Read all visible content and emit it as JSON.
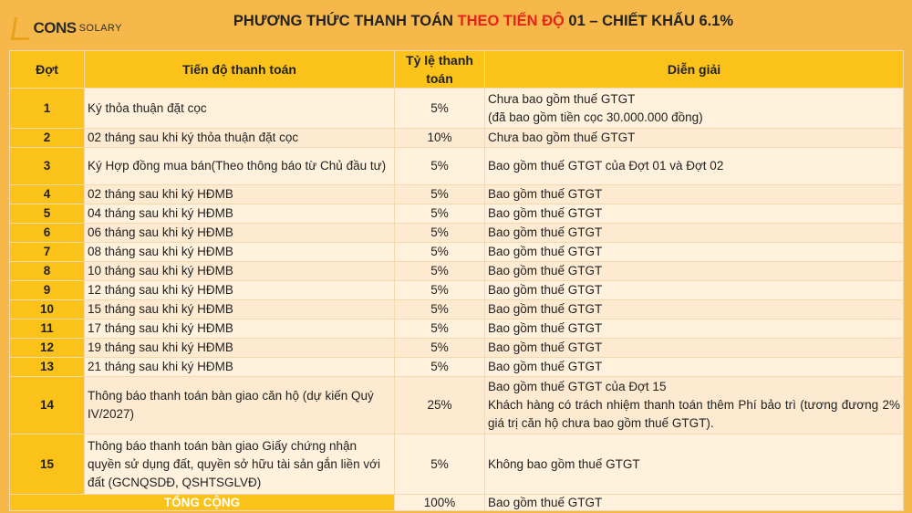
{
  "logo": {
    "brand": "CONS",
    "sub": "SOLARY"
  },
  "title": {
    "part1": "PHƯƠNG THỨC THANH TOÁN ",
    "highlight": "THEO TIẾN ĐỘ",
    "part2": " 01 – CHIẾT KHẤU 6.1%",
    "highlight_color": "#E5241B"
  },
  "table": {
    "headers": {
      "dot": "Đợt",
      "progress": "Tiến độ thanh toán",
      "rate": "Tỷ lệ thanh toán",
      "note": "Diễn giải"
    },
    "rows": [
      {
        "dot": "1",
        "progress": "Ký thỏa thuận đặt cọc",
        "rate": "5%",
        "note": [
          "Chưa bao gồm thuế GTGT",
          "(đã bao gồm tiền cọc 30.000.000 đồng)"
        ]
      },
      {
        "dot": "2",
        "progress": "02 tháng sau khi ký thỏa thuận đặt cọc",
        "rate": "10%",
        "note": [
          "Chưa bao gồm thuế GTGT"
        ]
      },
      {
        "dot": "3",
        "progress": "Ký Hợp đồng mua bán(Theo thông báo từ Chủ đầu tư)",
        "rate": "5%",
        "note": [
          "Bao gồm thuế GTGT của Đợt 01 và Đợt 02"
        ]
      },
      {
        "dot": "4",
        "progress": "02 tháng sau khi ký HĐMB",
        "rate": "5%",
        "note": [
          "Bao gồm thuế GTGT"
        ]
      },
      {
        "dot": "5",
        "progress": "04 tháng sau khi ký HĐMB",
        "rate": "5%",
        "note": [
          "Bao gồm thuế GTGT"
        ]
      },
      {
        "dot": "6",
        "progress": "06 tháng sau khi ký HĐMB",
        "rate": "5%",
        "note": [
          "Bao gồm thuế GTGT"
        ]
      },
      {
        "dot": "7",
        "progress": "08 tháng sau khi ký HĐMB",
        "rate": "5%",
        "note": [
          "Bao gồm thuế GTGT"
        ]
      },
      {
        "dot": "8",
        "progress": "10 tháng sau khi ký HĐMB",
        "rate": "5%",
        "note": [
          "Bao gồm thuế GTGT"
        ]
      },
      {
        "dot": "9",
        "progress": "12 tháng sau khi ký HĐMB",
        "rate": "5%",
        "note": [
          "Bao gồm thuế GTGT"
        ]
      },
      {
        "dot": "10",
        "progress": "15 tháng sau khi ký HĐMB",
        "rate": "5%",
        "note": [
          "Bao gồm thuế GTGT"
        ]
      },
      {
        "dot": "11",
        "progress": "17 tháng sau khi ký HĐMB",
        "rate": "5%",
        "note": [
          "Bao gồm thuế GTGT"
        ]
      },
      {
        "dot": "12",
        "progress": "19 tháng sau khi ký HĐMB",
        "rate": "5%",
        "note": [
          "Bao gồm thuế GTGT"
        ]
      },
      {
        "dot": "13",
        "progress": "21 tháng sau khi ký HĐMB",
        "rate": "5%",
        "note": [
          "Bao gồm thuế GTGT"
        ]
      },
      {
        "dot": "14",
        "progress": "Thông báo thanh toán bàn giao căn hộ (dự kiến Quý IV/2027)",
        "rate": "25%",
        "note": [
          "Bao gồm thuế GTGT của Đợt 15",
          "Khách hàng có trách nhiệm thanh toán thêm Phí bảo trì (tương đương 2% giá trị căn hộ chưa bao gồm thuế GTGT)."
        ]
      },
      {
        "dot": "15",
        "progress": "Thông báo thanh toán bàn giao Giấy chứng nhận quyền sử dụng đất, quyền sở hữu tài sản gắn liền với đất (GCNQSDĐ, QSHTSGLVĐ)",
        "rate": "5%",
        "note": [
          "Không bao gồm thuế GTGT"
        ]
      }
    ],
    "total": {
      "label": "TỔNG CỘNG",
      "rate": "100%",
      "note": "Bao gồm thuế GTGT"
    }
  }
}
